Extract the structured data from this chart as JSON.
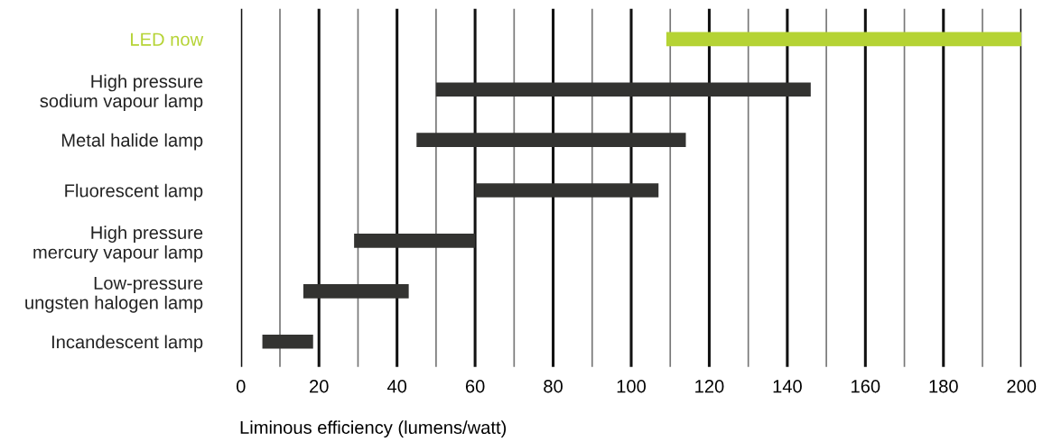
{
  "chart_data": {
    "type": "bar",
    "orientation": "horizontal",
    "xlabel": "Liminous efficiency (lumens/watt)",
    "categories": [
      "LED now",
      "High pressure\nsodium vapour lamp",
      "Metal halide lamp",
      "Fluorescent lamp",
      "High pressure\nmercury vapour lamp",
      "Low-pressure\nungsten halogen lamp",
      "Incandescent lamp"
    ],
    "base": [
      109,
      50,
      45,
      60,
      29,
      16,
      5.5
    ],
    "values": [
      91,
      96,
      69,
      47,
      31,
      27,
      13
    ],
    "colors": [
      "#b5d334",
      "#333331",
      "#333331",
      "#333331",
      "#333331",
      "#333331",
      "#333331"
    ],
    "xlim": [
      0,
      200
    ],
    "xticks": [
      0,
      {
        "value": 10,
        "label": null
      },
      20,
      {
        "value": 30,
        "label": null
      },
      40,
      {
        "value": 50,
        "label": null
      },
      60,
      {
        "value": 70,
        "label": null
      },
      80,
      {
        "value": 90,
        "label": null
      },
      100,
      {
        "value": 110,
        "label": null
      },
      120,
      {
        "value": 130,
        "label": null
      },
      140,
      {
        "value": 150,
        "label": null
      },
      160,
      {
        "value": 170,
        "label": null
      },
      180,
      {
        "value": 190,
        "label": null
      },
      200
    ],
    "grid": "x"
  }
}
